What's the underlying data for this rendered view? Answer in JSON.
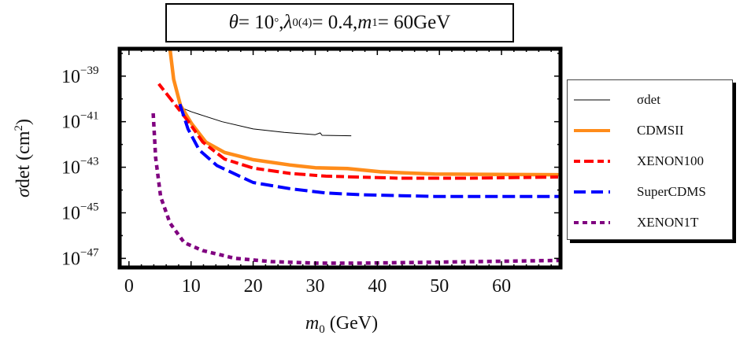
{
  "title": {
    "theta_symbol": "θ",
    "theta_eq": " = 10",
    "degree": "°",
    "sep1": ", ",
    "lambda_symbol": "λ",
    "lambda_sub": "0",
    "lambda_sup": "(4)",
    "lambda_eq": " = 0.4, ",
    "m_symbol": "m",
    "m_sub": "1",
    "m_eq": " = 60GeV"
  },
  "chart_data": {
    "type": "line",
    "xlabel": {
      "symbol": "m",
      "sub": "0",
      "rest": " (GeV)"
    },
    "ylabel": {
      "symbol": "σ",
      "rest": "det (cm",
      "sup": "2",
      "close": ")"
    },
    "y_scale": "log",
    "xlim": [
      -1.5,
      69.5
    ],
    "ylim_log10": [
      -47.4,
      -37.8
    ],
    "x_ticks": [
      0,
      10,
      20,
      30,
      40,
      50,
      60
    ],
    "x_tick_labels": [
      "0",
      "10",
      "20",
      "30",
      "40",
      "50",
      "60"
    ],
    "y_ticks_log10": [
      -39,
      -41,
      -43,
      -45,
      -47
    ],
    "y_tick_base": "10",
    "y_tick_exponents": [
      "−39",
      "−41",
      "−43",
      "−45",
      "−47"
    ],
    "grid": false,
    "legend_position": "right-outside",
    "series": [
      {
        "name": "σdet",
        "color": "#000000",
        "style": "solid-thin",
        "x": [
          7.5,
          10.1,
          15,
          20,
          25,
          30,
          30.8,
          31.1,
          35.8
        ],
        "log10_y": [
          -40.29,
          -40.57,
          -41.0,
          -41.32,
          -41.47,
          -41.57,
          -41.49,
          -41.6,
          -41.62
        ]
      },
      {
        "name": "CDMSII",
        "color": "#ff8c1a",
        "style": "solid-thick",
        "x": [
          6.6,
          7.2,
          8.3,
          10.1,
          12.4,
          15.4,
          20,
          25.9,
          30,
          35.2,
          40.5,
          49.2,
          69.5
        ],
        "log10_y": [
          -37.8,
          -39.14,
          -40.29,
          -41.09,
          -41.9,
          -42.35,
          -42.67,
          -42.9,
          -43.02,
          -43.06,
          -43.2,
          -43.3,
          -43.33
        ]
      },
      {
        "name": "XENON100",
        "color": "#ff0000",
        "style": "dash-dot",
        "x": [
          4.8,
          7.2,
          9.5,
          11.9,
          15.4,
          20,
          25.9,
          31.7,
          43.4,
          55,
          69.5
        ],
        "log10_y": [
          -39.34,
          -40.17,
          -40.97,
          -41.9,
          -42.64,
          -43.04,
          -43.27,
          -43.39,
          -43.48,
          -43.48,
          -43.43
        ]
      },
      {
        "name": "SuperCDMS",
        "color": "#0000ff",
        "style": "dashed",
        "x": [
          8.2,
          9.5,
          11.3,
          14.2,
          20,
          25.9,
          31.7,
          37.5,
          49.2,
          69.5
        ],
        "log10_y": [
          -40.23,
          -41.32,
          -42.24,
          -42.93,
          -43.67,
          -43.94,
          -44.13,
          -44.21,
          -44.28,
          -44.28
        ]
      },
      {
        "name": "XENON1T",
        "color": "#800080",
        "style": "dotted",
        "x": [
          3.9,
          4.3,
          5.1,
          6.6,
          8.9,
          11.9,
          17.1,
          22.9,
          30,
          37.5,
          49.2,
          69.5
        ],
        "log10_y": [
          -40.63,
          -42.58,
          -44.3,
          -45.45,
          -46.31,
          -46.66,
          -47.0,
          -47.14,
          -47.21,
          -47.21,
          -47.17,
          -47.09
        ]
      }
    ]
  }
}
